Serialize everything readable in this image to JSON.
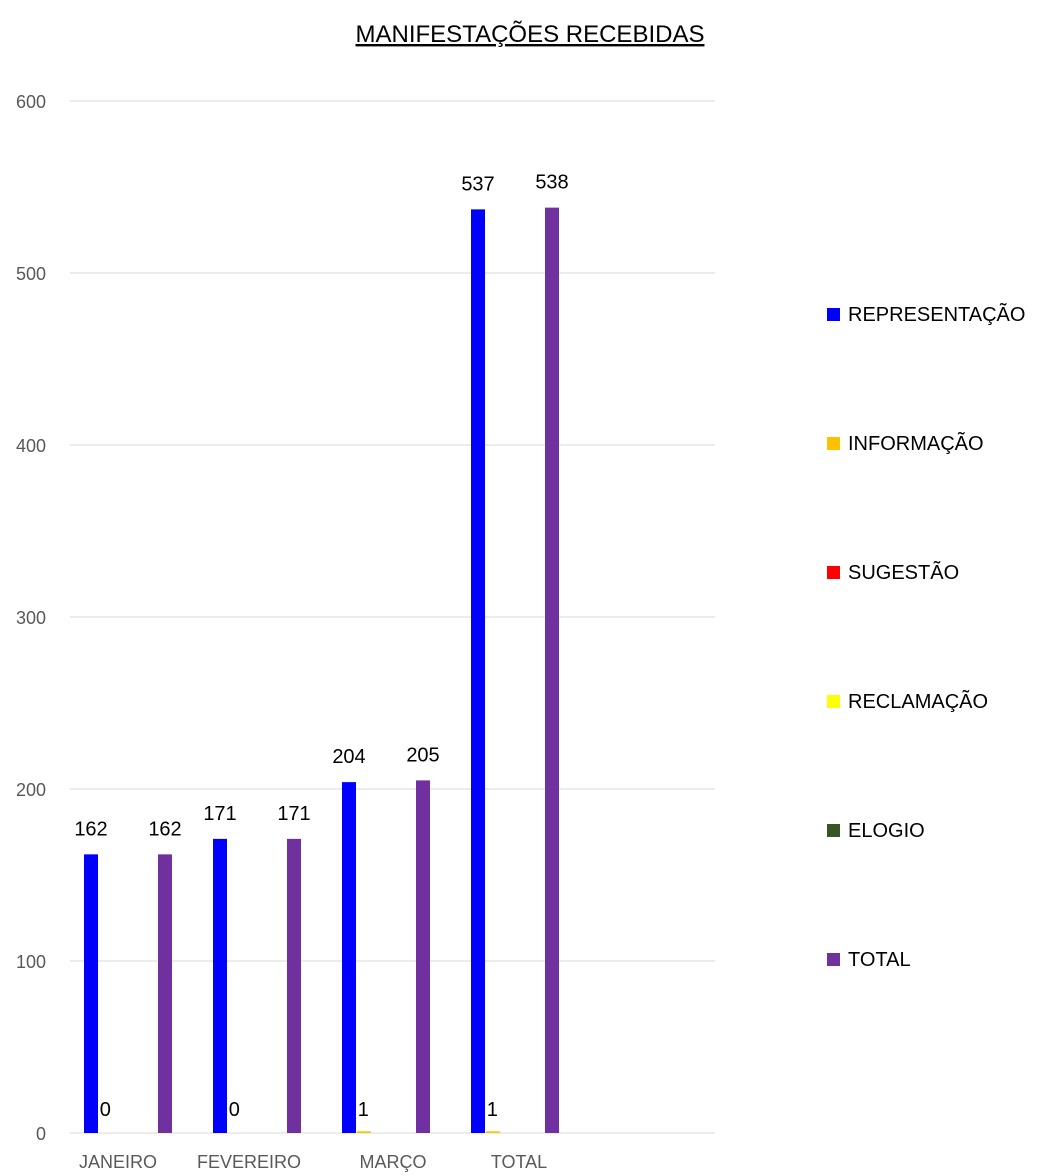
{
  "chart_data": {
    "type": "bar",
    "title": "MANIFESTAÇÕES RECEBIDAS",
    "categories": [
      "JANEIRO",
      "FEVEREIRO",
      "MARÇO",
      "TOTAL"
    ],
    "ylim": [
      0,
      600
    ],
    "yticks": [
      0,
      100,
      200,
      300,
      400,
      500,
      600
    ],
    "grid": true,
    "legend_position": "right",
    "series": [
      {
        "name": "REPRESENTAÇÃO",
        "color": "#0000ff",
        "values": [
          162,
          171,
          204,
          537
        ],
        "labels": [
          "162",
          "171",
          "204",
          "537"
        ]
      },
      {
        "name": "INFORMAÇÃO",
        "color": "#ffc000",
        "values": [
          0,
          0,
          1,
          1
        ],
        "labels": [
          "0",
          "0",
          "1",
          "1"
        ]
      },
      {
        "name": "SUGESTÃO",
        "color": "#ff0000",
        "values": [
          0,
          0,
          0,
          0
        ],
        "labels": []
      },
      {
        "name": "RECLAMAÇÃO",
        "color": "#ffff00",
        "values": [
          0,
          0,
          0,
          0
        ],
        "labels": []
      },
      {
        "name": "ELOGIO",
        "color": "#375623",
        "values": [
          0,
          0,
          0,
          0
        ],
        "labels": []
      },
      {
        "name": "TOTAL",
        "color": "#7030a0",
        "values": [
          162,
          171,
          205,
          538
        ],
        "labels": [
          "162",
          "171",
          "205",
          "538"
        ]
      }
    ]
  }
}
